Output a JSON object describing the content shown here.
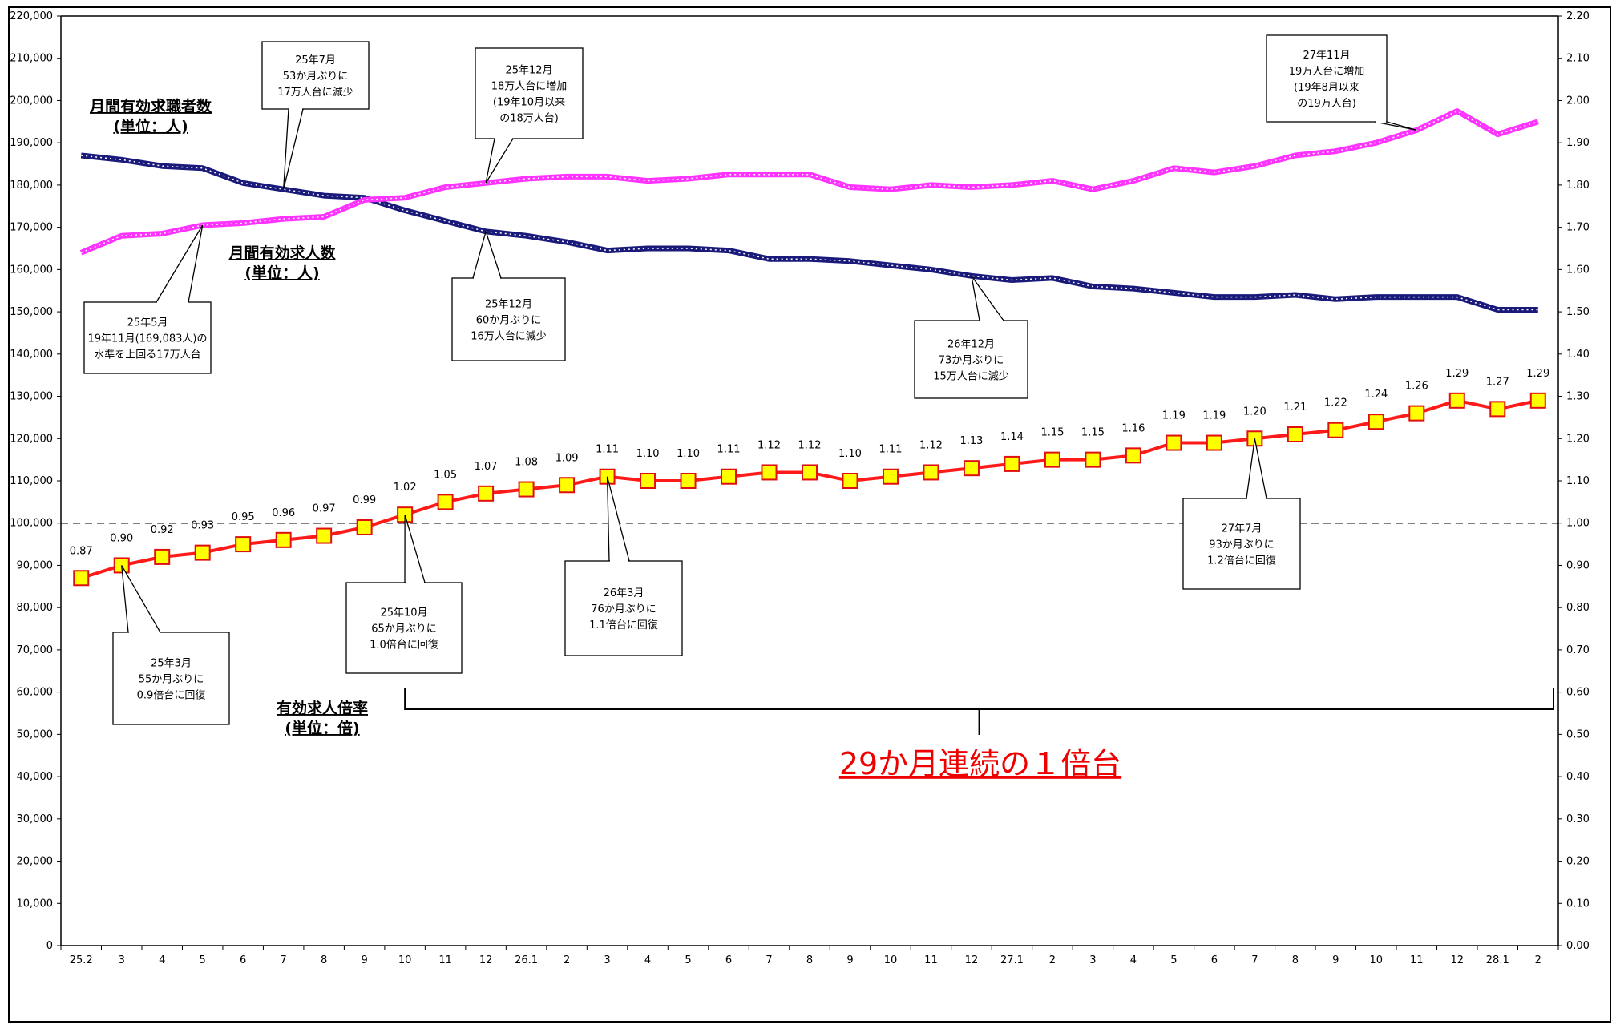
{
  "chart_data": {
    "type": "line",
    "categories": [
      "25.2",
      "3",
      "4",
      "5",
      "6",
      "7",
      "8",
      "9",
      "10",
      "11",
      "12",
      "26.1",
      "2",
      "3",
      "4",
      "5",
      "6",
      "7",
      "8",
      "9",
      "10",
      "11",
      "12",
      "27.1",
      "2",
      "3",
      "4",
      "5",
      "6",
      "7",
      "8",
      "9",
      "10",
      "11",
      "12",
      "28.1",
      "2"
    ],
    "y_left": {
      "ticks": [
        "220,000",
        "210,000",
        "200,000",
        "190,000",
        "180,000",
        "170,000",
        "160,000",
        "150,000",
        "140,000",
        "130,000",
        "120,000",
        "110,000",
        "100,000",
        "90,000",
        "80,000",
        "70,000",
        "60,000",
        "50,000",
        "40,000",
        "30,000",
        "20,000",
        "10,000",
        "0"
      ],
      "ylim": [
        0,
        220000
      ]
    },
    "y_right": {
      "ticks": [
        "2.20",
        "2.10",
        "2.00",
        "1.90",
        "1.80",
        "1.70",
        "1.60",
        "1.50",
        "1.40",
        "1.30",
        "1.20",
        "1.10",
        "1.00",
        "0.90",
        "0.80",
        "0.70",
        "0.60",
        "0.50",
        "0.40",
        "0.30",
        "0.20",
        "0.10",
        "0.00"
      ],
      "ylim": [
        0,
        2.2
      ]
    },
    "series": [
      {
        "name": "月間有効求職者数",
        "unit": "(単位：人)",
        "axis": "left",
        "color": "#1a1a7a",
        "values": [
          187000,
          186000,
          184500,
          184000,
          180500,
          179000,
          177500,
          177000,
          174000,
          171500,
          169000,
          168000,
          166500,
          164500,
          165000,
          165000,
          164500,
          162500,
          162500,
          162000,
          161000,
          160000,
          158500,
          157500,
          158000,
          156000,
          155500,
          154500,
          153500,
          153500,
          154000,
          153000,
          153500,
          153500,
          153500,
          150500,
          150500
        ]
      },
      {
        "name": "月間有効求人数",
        "unit": "(単位：人)",
        "axis": "left",
        "color": "#ff33ff",
        "values": [
          164000,
          168000,
          168500,
          170500,
          171000,
          172000,
          172500,
          176500,
          177000,
          179500,
          180500,
          181500,
          182000,
          182000,
          181000,
          181500,
          182500,
          182500,
          182500,
          179500,
          179000,
          180000,
          179500,
          180000,
          181000,
          179000,
          181000,
          184000,
          183000,
          184500,
          187000,
          188000,
          190000,
          193000,
          197500,
          192000,
          195000
        ]
      },
      {
        "name": "有効求人倍率",
        "unit": "(単位：倍)",
        "axis": "right",
        "color": "#ff1a1a",
        "values": [
          0.87,
          0.9,
          0.92,
          0.93,
          0.95,
          0.96,
          0.97,
          0.99,
          1.02,
          1.05,
          1.07,
          1.08,
          1.09,
          1.11,
          1.1,
          1.1,
          1.11,
          1.12,
          1.12,
          1.1,
          1.11,
          1.12,
          1.13,
          1.14,
          1.15,
          1.15,
          1.16,
          1.19,
          1.19,
          1.2,
          1.21,
          1.22,
          1.24,
          1.26,
          1.29,
          1.27,
          1.29
        ],
        "labels": [
          "0.87",
          "0.90",
          "0.92",
          "0.93",
          "0.95",
          "0.96",
          "0.97",
          "0.99",
          "1.02",
          "1.05",
          "1.07",
          "1.08",
          "1.09",
          "1.11",
          "1.10",
          "1.10",
          "1.11",
          "1.12",
          "1.12",
          "1.10",
          "1.11",
          "1.12",
          "1.13",
          "1.14",
          "1.15",
          "1.15",
          "1.16",
          "1.19",
          "1.19",
          "1.20",
          "1.21",
          "1.22",
          "1.24",
          "1.26",
          "1.29",
          "1.27",
          "1.29"
        ]
      }
    ],
    "reference_line": {
      "axis": "right",
      "value": 1.0,
      "style": "dashed"
    },
    "annotations": [
      {
        "lines": [
          "25年7月",
          "53か月ぶりに",
          "17万人台に減少"
        ]
      },
      {
        "lines": [
          "25年12月",
          "18万人台に増加",
          "(19年10月以来",
          "の18万人台)"
        ]
      },
      {
        "lines": [
          "27年11月",
          "19万人台に増加",
          "(19年8月以来",
          "の19万人台)"
        ]
      },
      {
        "lines": [
          "25年5月",
          "19年11月(169,083人)の",
          "水準を上回る17万人台"
        ]
      },
      {
        "lines": [
          "25年12月",
          "60か月ぶりに",
          "16万人台に減少"
        ]
      },
      {
        "lines": [
          "26年12月",
          "73か月ぶりに",
          "15万人台に減少"
        ]
      },
      {
        "lines": [
          "25年3月",
          "55か月ぶりに",
          "0.9倍台に回復"
        ]
      },
      {
        "lines": [
          "25年10月",
          "65か月ぶりに",
          "1.0倍台に回復"
        ]
      },
      {
        "lines": [
          "26年3月",
          "76か月ぶりに",
          "1.1倍台に回復"
        ]
      },
      {
        "lines": [
          "27年7月",
          "93か月ぶりに",
          "1.2倍台に回復"
        ]
      }
    ],
    "bracket_label": "29か月連続の１倍台"
  }
}
